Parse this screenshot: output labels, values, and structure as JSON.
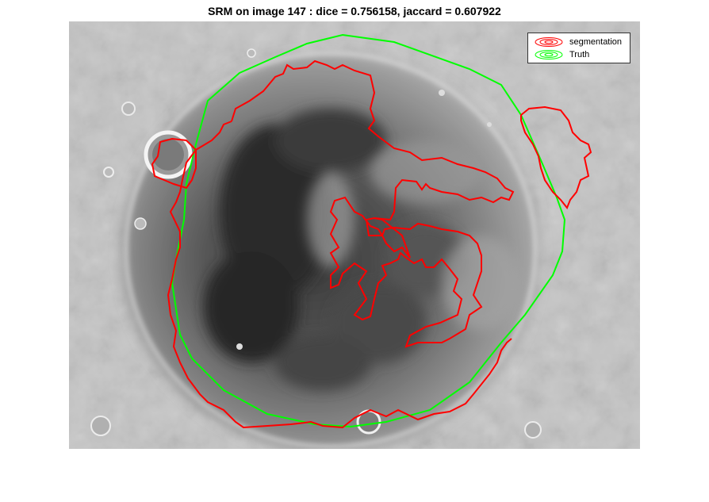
{
  "figure": {
    "title": "SRM on image 147 : dice = 0.756158, jaccard = 0.607922"
  },
  "legend": {
    "items": [
      {
        "label": "segmentation",
        "color": "#ff0000"
      },
      {
        "label": "Truth",
        "color": "#00ff00"
      }
    ]
  },
  "image": {
    "subject": "grayscale crater surface image with overlaid contours",
    "contours": [
      {
        "name": "segmentation",
        "color": "#ff0000"
      },
      {
        "name": "Truth",
        "color": "#00ff00"
      }
    ]
  }
}
